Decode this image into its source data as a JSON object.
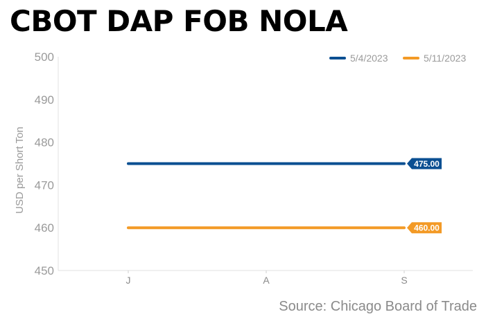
{
  "chart_data": {
    "type": "line",
    "title": "CBOT DAP FOB NOLA",
    "ylabel": "USD per Short Ton",
    "xlabel": "",
    "categories": [
      "J",
      "A",
      "S"
    ],
    "y_ticks": [
      450,
      460,
      470,
      480,
      490,
      500
    ],
    "ylim": [
      450,
      500
    ],
    "grid": false,
    "legend_position": "top-right",
    "series": [
      {
        "name": "5/4/2023",
        "color": "#0a4f92",
        "values": [
          475,
          475,
          475
        ],
        "end_label": "475.00"
      },
      {
        "name": "5/11/2023",
        "color": "#f39a26",
        "values": [
          460,
          460,
          460
        ],
        "end_label": "460.00"
      }
    ],
    "source": "Source: Chicago Board of Trade"
  }
}
